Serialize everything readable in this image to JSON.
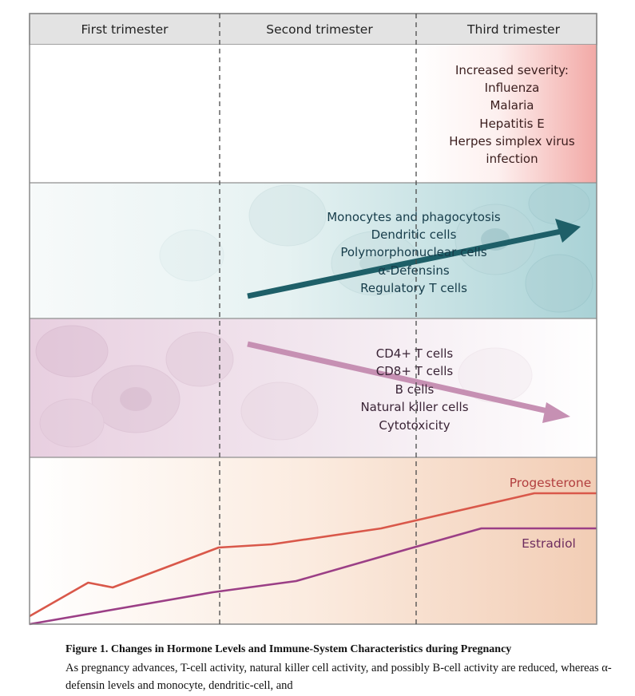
{
  "header": {
    "columns": [
      "First trimester",
      "Second trimester",
      "Third trimester"
    ]
  },
  "infection_panel": {
    "title": "Increased severity:",
    "items": [
      "Influenza",
      "Malaria",
      "Hepatitis E",
      "Herpes simplex virus",
      "infection"
    ]
  },
  "increased_panel": {
    "items": [
      "Monocytes and phagocytosis",
      "Dendritic cells",
      "Polymorphonuclear cells",
      "α-Defensins",
      "Regulatory T cells"
    ]
  },
  "decreased_panel": {
    "items": [
      "CD4+ T cells",
      "CD8+ T cells",
      "B cells",
      "Natural killer cells",
      "Cytotoxicity"
    ]
  },
  "chart_data": {
    "type": "line",
    "title": "",
    "xlabel": "",
    "ylabel": "",
    "x": [
      0,
      0.31,
      0.44,
      0.97,
      1.28,
      1.86,
      2.67,
      3.0
    ],
    "xlim": [
      0,
      3
    ],
    "ylim": [
      0,
      1
    ],
    "series": [
      {
        "name": "Progesterone",
        "color": "#d9584a",
        "x": [
          0,
          0.31,
          0.44,
          1.0,
          1.28,
          1.86,
          2.67,
          3.0
        ],
        "values": [
          0.05,
          0.26,
          0.23,
          0.48,
          0.5,
          0.6,
          0.82,
          0.82
        ]
      },
      {
        "name": "Estradiol",
        "color": "#9b3f86",
        "x": [
          0,
          0.97,
          1.41,
          2.0,
          2.39,
          3.0
        ],
        "values": [
          0.0,
          0.2,
          0.27,
          0.47,
          0.6,
          0.6
        ]
      }
    ]
  },
  "colors": {
    "increase_arrow": "#1e5f68",
    "decrease_arrow": "#c690b3",
    "header_bg": "#e3e3e3"
  },
  "caption": {
    "title": "Figure 1. Changes in Hormone Levels and Immune-System Characteristics during Pregnancy",
    "text": "As pregnancy advances, T-cell activity, natural killer cell activity, and possibly B-cell activity are reduced, whereas α-defensin levels and monocyte, dendritic-cell, and"
  }
}
